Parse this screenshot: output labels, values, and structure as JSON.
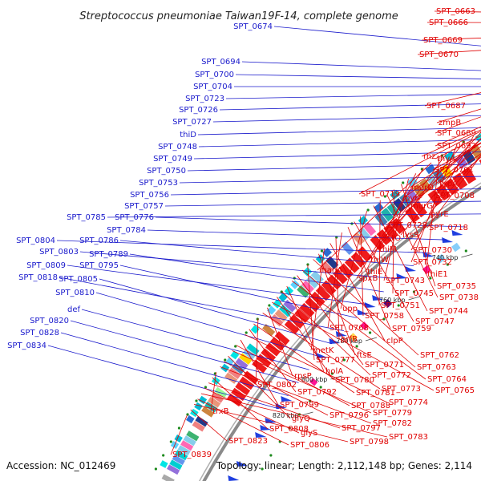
{
  "title": "Streptococcus pneumoniae Taiwan19F-14, complete genome",
  "footer": {
    "accession": "Accession: NC_012469",
    "summary": "Topology: linear; Length: 2,112,148 bp; Genes: 2,114"
  },
  "colors": {
    "left_labels": "#1a1acc",
    "right_labels": "#e00000",
    "backbone": "#888888",
    "tick_dots": "#1d8a1d"
  },
  "ticks": [
    "660 kbp",
    "680 kbp",
    "700 kbp",
    "720 kbp",
    "740 kbp",
    "760 kbp",
    "780 kbp",
    "800 kbp",
    "820 kbp"
  ],
  "left_labels": [
    "SPT_0674",
    "SPT_0694",
    "SPT_0700",
    "SPT_0704",
    "SPT_0723",
    "SPT_0726",
    "SPT_0727",
    "thiD",
    "SPT_0748",
    "SPT_0749",
    "SPT_0750",
    "SPT_0753",
    "SPT_0756",
    "SPT_0757",
    "SPT_0785",
    "SPT_0776",
    "SPT_0784",
    "SPT_0804",
    "SPT_0786",
    "SPT_0803",
    "SPT_0789",
    "SPT_0809",
    "SPT_0795",
    "SPT_0818",
    "SPT_0805",
    "SPT_0810",
    "def",
    "SPT_0820",
    "SPT_0828",
    "SPT_0834"
  ],
  "right_labels": [
    "SPT_0663",
    "SPT_0666",
    "SPT_0669",
    "SPT_0670",
    "SPT_0687",
    "zmpB",
    "SPT_0689",
    "SPT_0692",
    "rnz",
    "thyA",
    "SPT_0701",
    "typA",
    "murD",
    "SPT_0708",
    "SPT_0719",
    "pyrF",
    "murG",
    "pyrE",
    "SPT_0718",
    "SPT_0728",
    "lysS",
    "lctO",
    "SPT_0730",
    "thiM",
    "SPT_0732",
    "thiW",
    "thiE1",
    "manA",
    "spxB",
    "thiE",
    "SPT_0743",
    "SPT_0735",
    "SPT_0745",
    "SPT_0738",
    "SPT_0751",
    "SPT_0744",
    "upp",
    "SPT_0758",
    "SPT_0747",
    "SPT_0759",
    "SPT_0768",
    "prfB",
    "clpP",
    "metK",
    "ftsE",
    "SPT_0762",
    "SPT_0777",
    "SPT_0763",
    "SPT_0771",
    "SPT_0764",
    "holA",
    "SPT_0772",
    "SPT_0780",
    "SPT_0765",
    "rpsP",
    "SPT_0773",
    "SPT_0802",
    "SPT_0781",
    "SPT_0792",
    "SPT_0774",
    "SPT_0799",
    "SPT_0788",
    "SPT_0779",
    "glyQ",
    "SPT_0796",
    "SPT_0782",
    "trxB",
    "SPT_0808",
    "SPT_0797",
    "glyS",
    "SPT_0783",
    "SPT_0806",
    "SPT_0798",
    "SPT_0823",
    "SPT_0839"
  ]
}
